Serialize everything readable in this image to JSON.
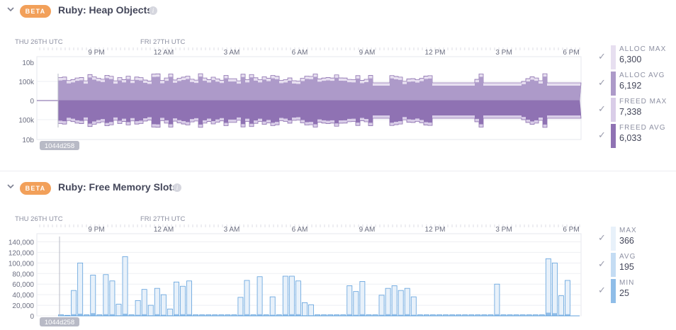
{
  "panels": [
    {
      "badge": "BETA",
      "title": "Ruby: Heap Objects",
      "info": "i",
      "time_axis": {
        "date_labels": [
          "THU 26TH UTC",
          "FRI 27TH UTC"
        ],
        "time_labels": [
          "9 PM",
          "12 AM",
          "3 AM",
          "6 AM",
          "9 AM",
          "12 PM",
          "3 PM",
          "6 PM"
        ]
      },
      "y_labels": [
        "10b",
        "100k",
        "0",
        "100k",
        "10b"
      ],
      "deploy_marker": "1044d258",
      "legend": [
        {
          "label": "ALLOC MAX",
          "value": "6,300",
          "color": "#e7dff0"
        },
        {
          "label": "ALLOC AVG",
          "value": "6,192",
          "color": "#ad9ac9"
        },
        {
          "label": "FREED MAX",
          "value": "7,338",
          "color": "#d9cde8"
        },
        {
          "label": "FREED AVG",
          "value": "6,033",
          "color": "#8f72b3"
        }
      ]
    },
    {
      "badge": "BETA",
      "title": "Ruby: Free Memory Slots",
      "info": "i",
      "time_axis": {
        "date_labels": [
          "THU 26TH UTC",
          "FRI 27TH UTC"
        ],
        "time_labels": [
          "9 PM",
          "12 AM",
          "3 AM",
          "6 AM",
          "9 AM",
          "12 PM",
          "3 PM",
          "6 PM"
        ]
      },
      "y_labels": [
        "140,000",
        "120,000",
        "100,000",
        "80,000",
        "60,000",
        "40,000",
        "20,000",
        "0"
      ],
      "deploy_marker": "1044d258",
      "legend": [
        {
          "label": "MAX",
          "value": "366",
          "color": "#e8f1fa"
        },
        {
          "label": "AVG",
          "value": "195",
          "color": "#c4dcf3"
        },
        {
          "label": "MIN",
          "value": "25",
          "color": "#8fbde8"
        }
      ]
    }
  ],
  "chart_data": [
    {
      "type": "area",
      "title": "Ruby: Heap Objects",
      "x": [
        "9 PM",
        "12 AM",
        "3 AM",
        "6 AM",
        "9 AM",
        "12 PM",
        "3 PM",
        "6 PM"
      ],
      "series": [
        {
          "name": "ALLOC MAX",
          "values": [
            110000,
            108000,
            110000,
            111000,
            110000,
            108000,
            100000,
            95000
          ]
        },
        {
          "name": "ALLOC AVG",
          "values": [
            100000,
            98000,
            100000,
            101000,
            98000,
            92000,
            80000,
            78000
          ]
        },
        {
          "name": "FREED MAX",
          "values": [
            110000,
            108000,
            110000,
            111000,
            110000,
            108000,
            100000,
            95000
          ]
        },
        {
          "name": "FREED AVG",
          "values": [
            100000,
            98000,
            100000,
            101000,
            98000,
            92000,
            80000,
            78000
          ]
        }
      ]
    },
    {
      "type": "bar",
      "title": "Ruby: Free Memory Slots",
      "ylim": [
        0,
        150000
      ],
      "series": [
        {
          "name": "MAX",
          "values": [
            2000,
            1000,
            48000,
            100000,
            2000,
            77000,
            2000,
            78000,
            66000,
            22000,
            112000,
            2000,
            29000,
            50000,
            20000,
            52000,
            40000,
            13000,
            64000,
            56000,
            66000,
            2000,
            2000,
            2000,
            2000,
            2000,
            2000,
            2000,
            35000,
            67000,
            2000,
            74000,
            2000,
            36000,
            2000,
            75000,
            75000,
            66000,
            25000,
            21000,
            2000,
            2000,
            2000,
            2000,
            2000,
            57000,
            46000,
            65000,
            2000,
            2000,
            39000,
            52000,
            57000,
            48000,
            52000,
            36000,
            2000,
            2000,
            2000,
            2000,
            2000,
            2000,
            2000,
            2000,
            2000,
            2000,
            2000,
            2000,
            60000,
            2000,
            2000,
            2000,
            2000,
            2000,
            2000,
            2000,
            108000,
            100000,
            38000,
            67000
          ]
        },
        {
          "name": "AVG",
          "values": [
            1000,
            500,
            3000,
            4000,
            1000,
            5000,
            1000,
            3000,
            3000,
            1000,
            4000,
            1000,
            2000,
            3000,
            1000,
            3000,
            2000,
            1000,
            3000,
            3000,
            3000,
            1000,
            1000,
            1000,
            1000,
            1000,
            1000,
            1000,
            2000,
            3000,
            1000,
            3000,
            1000,
            2000,
            1000,
            3000,
            3000,
            3000,
            1000,
            1000,
            1000,
            1000,
            1000,
            1000,
            1000,
            3000,
            2000,
            3000,
            1000,
            1000,
            2000,
            3000,
            3000,
            2000,
            3000,
            2000,
            1000,
            1000,
            1000,
            1000,
            1000,
            1000,
            1000,
            1000,
            1000,
            1000,
            1000,
            1000,
            3000,
            1000,
            1000,
            1000,
            1000,
            1000,
            1000,
            1000,
            6000,
            5000,
            2000,
            3000
          ]
        }
      ]
    }
  ]
}
